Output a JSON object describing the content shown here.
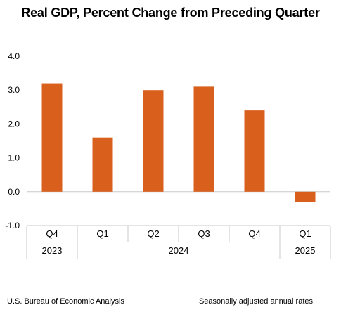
{
  "chart_data": {
    "type": "bar",
    "title": "Real GDP, Percent Change from Preceding Quarter",
    "categories": [
      "Q4",
      "Q1",
      "Q2",
      "Q3",
      "Q4",
      "Q1"
    ],
    "years": [
      {
        "label": "2023",
        "span": 1
      },
      {
        "label": "2024",
        "span": 4
      },
      {
        "label": "2025",
        "span": 1
      }
    ],
    "values": [
      3.2,
      1.6,
      3.0,
      3.1,
      2.4,
      -0.3
    ],
    "ylim": [
      -1.0,
      4.0
    ],
    "yticks": [
      "4.0",
      "3.0",
      "2.0",
      "1.0",
      "0.0",
      "-1.0"
    ],
    "bar_color": "#d8601c",
    "grid": false
  },
  "footer": {
    "source": "U.S. Bureau of Economic Analysis",
    "note": "Seasonally adjusted annual rates"
  }
}
